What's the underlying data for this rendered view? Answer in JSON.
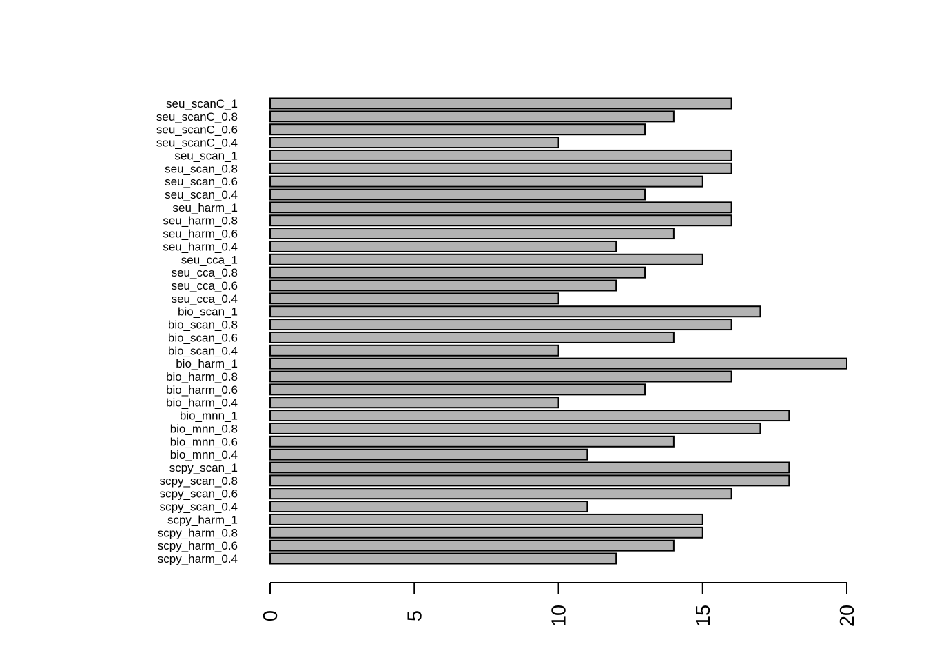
{
  "chart_data": {
    "type": "barh",
    "categories": [
      "seu_scanC_1",
      "seu_scanC_0.8",
      "seu_scanC_0.6",
      "seu_scanC_0.4",
      "seu_scan_1",
      "seu_scan_0.8",
      "seu_scan_0.6",
      "seu_scan_0.4",
      "seu_harm_1",
      "seu_harm_0.8",
      "seu_harm_0.6",
      "seu_harm_0.4",
      "seu_cca_1",
      "seu_cca_0.8",
      "seu_cca_0.6",
      "seu_cca_0.4",
      "bio_scan_1",
      "bio_scan_0.8",
      "bio_scan_0.6",
      "bio_scan_0.4",
      "bio_harm_1",
      "bio_harm_0.8",
      "bio_harm_0.6",
      "bio_harm_0.4",
      "bio_mnn_1",
      "bio_mnn_0.8",
      "bio_mnn_0.6",
      "bio_mnn_0.4",
      "scpy_scan_1",
      "scpy_scan_0.8",
      "scpy_scan_0.6",
      "scpy_scan_0.4",
      "scpy_harm_1",
      "scpy_harm_0.8",
      "scpy_harm_0.6",
      "scpy_harm_0.4"
    ],
    "values": [
      16,
      14,
      13,
      10,
      16,
      16,
      15,
      13,
      16,
      16,
      14,
      12,
      15,
      13,
      12,
      10,
      17,
      16,
      14,
      10,
      20,
      16,
      13,
      10,
      18,
      17,
      14,
      11,
      18,
      18,
      16,
      11,
      15,
      15,
      14,
      12
    ],
    "color": "#b3b3b3",
    "xlim": [
      0,
      20
    ],
    "xticks": [
      0,
      5,
      10,
      15,
      20
    ]
  }
}
